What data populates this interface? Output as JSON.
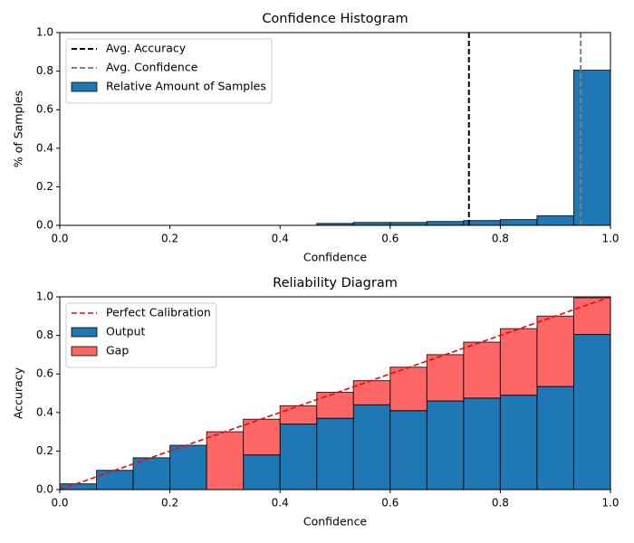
{
  "chart_data": [
    {
      "type": "histogram",
      "title": "Confidence Histogram",
      "xlabel": "Confidence",
      "ylabel": "% of Samples",
      "bins": [
        0,
        0.0667,
        0.1333,
        0.2,
        0.2667,
        0.3333,
        0.4,
        0.4667,
        0.5333,
        0.6,
        0.6667,
        0.7333,
        0.8,
        0.8667,
        0.9333,
        1
      ],
      "series": [
        {
          "name": "Relative Amount of Samples",
          "color": "#1f77b4",
          "values": [
            0,
            0,
            0,
            0,
            0,
            0,
            0,
            0.01,
            0.015,
            0.015,
            0.02,
            0.025,
            0.03,
            0.05,
            0.805
          ]
        }
      ],
      "vlines": [
        {
          "name": "Avg. Accuracy",
          "color": "#000000",
          "x": 0.743
        },
        {
          "name": "Avg. Confidence",
          "color": "#808080",
          "x": 0.946
        }
      ],
      "xlim": [
        0,
        1
      ],
      "ylim": [
        0,
        1
      ],
      "xticks": [
        {
          "value": 0,
          "label": "0.0"
        },
        0.2,
        0.4,
        0.6,
        0.8,
        {
          "value": 1,
          "label": "1.0"
        }
      ],
      "yticks": [
        {
          "value": 0,
          "label": "0.0"
        },
        0.2,
        0.4,
        0.6,
        0.8,
        {
          "value": 1,
          "label": "1.0"
        }
      ],
      "legend": "upper left"
    },
    {
      "type": "histogram",
      "title": "Reliability Diagram",
      "xlabel": "Confidence",
      "ylabel": "Accuracy",
      "bins": [
        0,
        0.0667,
        0.1333,
        0.2,
        0.2667,
        0.3333,
        0.4,
        0.4667,
        0.5333,
        0.6,
        0.6667,
        0.7333,
        0.8,
        0.8667,
        0.9333,
        1
      ],
      "stacked": true,
      "series": [
        {
          "name": "Output",
          "color": "#1f77b4",
          "values": [
            0.03,
            0.1,
            0.165,
            0.23,
            0,
            0.18,
            0.34,
            0.37,
            0.44,
            0.41,
            0.46,
            0.475,
            0.49,
            0.535,
            0.805
          ]
        },
        {
          "name": "Gap",
          "color": "#ff6666",
          "values": [
            0,
            0,
            0,
            0,
            0.3,
            0.185,
            0.095,
            0.135,
            0.125,
            0.225,
            0.24,
            0.29,
            0.345,
            0.365,
            0.19
          ]
        }
      ],
      "lines": [
        {
          "name": "Perfect Calibration",
          "color": "#ff0000",
          "x": [
            0,
            1
          ],
          "values": [
            0,
            1
          ]
        }
      ],
      "xlim": [
        0,
        1
      ],
      "ylim": [
        0,
        1
      ],
      "xticks": [
        {
          "value": 0,
          "label": "0.0"
        },
        0.2,
        0.4,
        0.6,
        0.8,
        {
          "value": 1,
          "label": "1.0"
        }
      ],
      "yticks": [
        {
          "value": 0,
          "label": "0.0"
        },
        0.2,
        0.4,
        0.6,
        0.8,
        {
          "value": 1,
          "label": "1.0"
        }
      ],
      "legend": "upper left"
    }
  ]
}
